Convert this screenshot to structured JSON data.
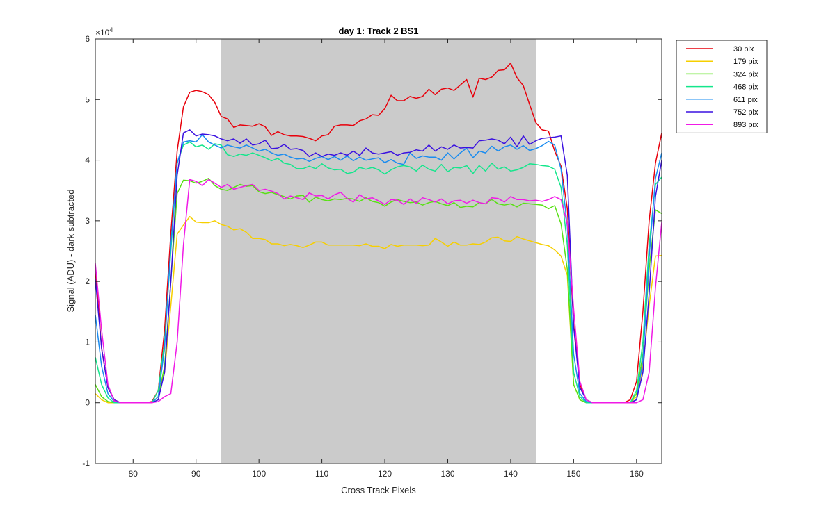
{
  "chart_data": {
    "type": "line",
    "title": "day 1: Track 2  BS1",
    "xlabel": "Cross Track Pixels",
    "ylabel": "Signal (ADU) - dark subtracted",
    "y_exponent_label": "×10",
    "y_exponent_power": "4",
    "xlim": [
      74,
      164
    ],
    "ylim": [
      -1,
      6
    ],
    "x_ticks": [
      80,
      90,
      100,
      110,
      120,
      130,
      140,
      150,
      160
    ],
    "y_ticks": [
      -1,
      0,
      1,
      2,
      3,
      4,
      5,
      6
    ],
    "shaded_region": {
      "x": [
        94,
        144
      ],
      "color": "#cbcbcb"
    },
    "legend_placement": "outside top-right",
    "grid": false,
    "x": [
      74,
      75,
      76,
      77,
      78,
      79,
      80,
      81,
      82,
      83,
      84,
      85,
      86,
      87,
      88,
      89,
      90,
      91,
      92,
      93,
      94,
      95,
      96,
      97,
      98,
      99,
      100,
      101,
      102,
      103,
      104,
      105,
      106,
      107,
      108,
      109,
      110,
      111,
      112,
      113,
      114,
      115,
      116,
      117,
      118,
      119,
      120,
      121,
      122,
      123,
      124,
      125,
      126,
      127,
      128,
      129,
      130,
      131,
      132,
      133,
      134,
      135,
      136,
      137,
      138,
      139,
      140,
      141,
      142,
      143,
      144,
      145,
      146,
      147,
      148,
      149,
      150,
      151,
      152,
      153,
      154,
      155,
      156,
      157,
      158,
      159,
      160,
      161,
      162,
      163,
      164
    ],
    "series": [
      {
        "name": "30 pix",
        "color": "#e8000b",
        "values": [
          2.25,
          0.9,
          0.25,
          0.05,
          0.0,
          0.0,
          0.0,
          0.0,
          0.0,
          0.02,
          0.2,
          1.2,
          2.8,
          4.15,
          4.88,
          5.12,
          5.15,
          5.13,
          5.08,
          4.95,
          4.72,
          4.68,
          4.54,
          4.58,
          4.57,
          4.56,
          4.6,
          4.55,
          4.41,
          4.47,
          4.42,
          4.4,
          4.4,
          4.39,
          4.36,
          4.32,
          4.4,
          4.42,
          4.56,
          4.58,
          4.58,
          4.57,
          4.65,
          4.68,
          4.75,
          4.74,
          4.85,
          5.07,
          4.98,
          4.98,
          5.05,
          5.02,
          5.05,
          5.17,
          5.08,
          5.17,
          5.19,
          5.15,
          5.24,
          5.33,
          5.04,
          5.35,
          5.33,
          5.37,
          5.48,
          5.49,
          5.6,
          5.36,
          5.23,
          4.92,
          4.62,
          4.5,
          4.48,
          4.15,
          3.9,
          3.2,
          1.3,
          0.3,
          0.05,
          0.0,
          0.0,
          0.0,
          0.0,
          0.0,
          0.0,
          0.05,
          0.35,
          1.5,
          3.0,
          3.95,
          4.45
        ]
      },
      {
        "name": "179 pix",
        "color": "#f6cf00",
        "values": [
          0.15,
          0.05,
          0.0,
          0.0,
          0.0,
          0.0,
          0.0,
          0.0,
          0.0,
          0.0,
          0.1,
          0.5,
          1.6,
          2.78,
          2.93,
          3.07,
          2.98,
          2.97,
          2.97,
          3.0,
          2.94,
          2.91,
          2.85,
          2.87,
          2.81,
          2.71,
          2.71,
          2.69,
          2.62,
          2.62,
          2.59,
          2.61,
          2.59,
          2.56,
          2.6,
          2.65,
          2.65,
          2.6,
          2.6,
          2.6,
          2.6,
          2.6,
          2.59,
          2.62,
          2.58,
          2.58,
          2.54,
          2.61,
          2.58,
          2.6,
          2.6,
          2.6,
          2.59,
          2.6,
          2.71,
          2.65,
          2.58,
          2.65,
          2.6,
          2.6,
          2.62,
          2.61,
          2.65,
          2.72,
          2.73,
          2.67,
          2.66,
          2.74,
          2.7,
          2.67,
          2.64,
          2.61,
          2.59,
          2.52,
          2.42,
          2.1,
          0.3,
          0.05,
          0.0,
          0.0,
          0.0,
          0.0,
          0.0,
          0.0,
          0.0,
          0.0,
          0.1,
          0.6,
          1.6,
          2.42,
          2.43
        ]
      },
      {
        "name": "324 pix",
        "color": "#58e014",
        "values": [
          0.3,
          0.1,
          0.02,
          0.0,
          0.0,
          0.0,
          0.0,
          0.0,
          0.0,
          0.0,
          0.1,
          0.6,
          2.0,
          3.45,
          3.67,
          3.66,
          3.62,
          3.65,
          3.7,
          3.58,
          3.52,
          3.5,
          3.55,
          3.6,
          3.57,
          3.58,
          3.48,
          3.45,
          3.47,
          3.43,
          3.4,
          3.36,
          3.41,
          3.42,
          3.31,
          3.39,
          3.35,
          3.33,
          3.36,
          3.35,
          3.37,
          3.36,
          3.32,
          3.38,
          3.32,
          3.3,
          3.24,
          3.31,
          3.35,
          3.32,
          3.3,
          3.31,
          3.26,
          3.3,
          3.32,
          3.28,
          3.25,
          3.3,
          3.22,
          3.24,
          3.23,
          3.3,
          3.28,
          3.35,
          3.28,
          3.26,
          3.28,
          3.23,
          3.29,
          3.28,
          3.27,
          3.26,
          3.2,
          3.25,
          2.95,
          2.2,
          0.3,
          0.05,
          0.0,
          0.0,
          0.0,
          0.0,
          0.0,
          0.0,
          0.0,
          0.0,
          0.15,
          0.8,
          2.2,
          3.18,
          3.12
        ]
      },
      {
        "name": "468 pix",
        "color": "#14e68c",
        "values": [
          0.75,
          0.3,
          0.08,
          0.0,
          0.0,
          0.0,
          0.0,
          0.0,
          0.0,
          0.0,
          0.2,
          1.0,
          2.5,
          3.95,
          4.25,
          4.3,
          4.22,
          4.25,
          4.18,
          4.27,
          4.25,
          4.09,
          4.06,
          4.1,
          4.08,
          4.12,
          4.08,
          4.04,
          3.99,
          4.03,
          3.95,
          3.93,
          3.86,
          3.86,
          3.9,
          3.86,
          3.94,
          3.87,
          3.84,
          3.85,
          3.78,
          3.8,
          3.88,
          3.85,
          3.88,
          3.84,
          3.77,
          3.84,
          3.89,
          3.91,
          3.89,
          3.82,
          3.92,
          3.85,
          3.82,
          3.93,
          3.81,
          3.88,
          3.87,
          3.91,
          3.78,
          3.91,
          3.82,
          3.95,
          3.85,
          3.89,
          3.82,
          3.84,
          3.88,
          3.94,
          3.93,
          3.91,
          3.9,
          3.85,
          3.55,
          2.6,
          0.5,
          0.1,
          0.0,
          0.0,
          0.0,
          0.0,
          0.0,
          0.0,
          0.0,
          0.0,
          0.2,
          1.0,
          2.6,
          3.6,
          3.72
        ]
      },
      {
        "name": "611 pix",
        "color": "#1a8cf0",
        "values": [
          1.45,
          0.6,
          0.15,
          0.02,
          0.0,
          0.0,
          0.0,
          0.0,
          0.0,
          0.0,
          0.1,
          0.9,
          2.6,
          3.95,
          4.3,
          4.32,
          4.3,
          4.42,
          4.3,
          4.25,
          4.2,
          4.25,
          4.22,
          4.2,
          4.25,
          4.2,
          4.15,
          4.18,
          4.12,
          4.08,
          4.1,
          4.05,
          4.02,
          4.03,
          3.98,
          4.03,
          4.06,
          4.01,
          4.06,
          4.0,
          4.07,
          3.99,
          4.05,
          4.0,
          4.02,
          4.04,
          3.96,
          4.01,
          3.95,
          3.93,
          4.12,
          4.03,
          4.07,
          4.05,
          4.05,
          4.0,
          4.12,
          4.02,
          4.12,
          4.2,
          4.04,
          4.15,
          4.12,
          4.23,
          4.15,
          4.22,
          4.25,
          4.18,
          4.24,
          4.16,
          4.19,
          4.24,
          4.31,
          4.25,
          3.85,
          2.9,
          0.8,
          0.15,
          0.02,
          0.0,
          0.0,
          0.0,
          0.0,
          0.0,
          0.0,
          0.0,
          0.05,
          0.7,
          2.4,
          3.7,
          4.12
        ]
      },
      {
        "name": "752 pix",
        "color": "#3a10e0",
        "values": [
          2.05,
          0.9,
          0.25,
          0.05,
          0.0,
          0.0,
          0.0,
          0.0,
          0.0,
          0.0,
          0.05,
          0.5,
          2.0,
          3.75,
          4.45,
          4.5,
          4.4,
          4.43,
          4.42,
          4.4,
          4.35,
          4.32,
          4.35,
          4.28,
          4.35,
          4.25,
          4.27,
          4.33,
          4.19,
          4.2,
          4.26,
          4.18,
          4.19,
          4.16,
          4.06,
          4.12,
          4.06,
          4.1,
          4.08,
          4.12,
          4.08,
          4.15,
          4.08,
          4.2,
          4.12,
          4.1,
          4.12,
          4.14,
          4.08,
          4.12,
          4.13,
          4.17,
          4.15,
          4.25,
          4.15,
          4.22,
          4.18,
          4.25,
          4.2,
          4.21,
          4.2,
          4.32,
          4.33,
          4.35,
          4.33,
          4.27,
          4.38,
          4.22,
          4.4,
          4.26,
          4.32,
          4.36,
          4.37,
          4.38,
          4.4,
          3.75,
          1.25,
          0.25,
          0.05,
          0.0,
          0.0,
          0.0,
          0.0,
          0.0,
          0.0,
          0.0,
          0.05,
          0.5,
          1.8,
          3.4,
          4.0
        ]
      },
      {
        "name": "893 pix",
        "color": "#f01ae6",
        "values": [
          2.3,
          1.2,
          0.3,
          0.03,
          0.0,
          0.0,
          0.0,
          0.0,
          0.0,
          0.0,
          0.02,
          0.1,
          0.15,
          1.0,
          2.6,
          3.68,
          3.65,
          3.58,
          3.68,
          3.62,
          3.55,
          3.6,
          3.52,
          3.55,
          3.58,
          3.6,
          3.5,
          3.52,
          3.49,
          3.45,
          3.36,
          3.41,
          3.38,
          3.35,
          3.46,
          3.41,
          3.42,
          3.36,
          3.43,
          3.47,
          3.37,
          3.31,
          3.43,
          3.36,
          3.38,
          3.33,
          3.27,
          3.35,
          3.34,
          3.27,
          3.36,
          3.29,
          3.38,
          3.35,
          3.31,
          3.36,
          3.28,
          3.33,
          3.34,
          3.29,
          3.34,
          3.3,
          3.28,
          3.38,
          3.37,
          3.31,
          3.4,
          3.35,
          3.35,
          3.33,
          3.34,
          3.32,
          3.35,
          3.4,
          3.35,
          2.95,
          1.55,
          0.35,
          0.05,
          0.0,
          0.0,
          0.0,
          0.0,
          0.0,
          0.0,
          0.0,
          0.0,
          0.05,
          0.5,
          1.9,
          2.98
        ]
      }
    ]
  }
}
